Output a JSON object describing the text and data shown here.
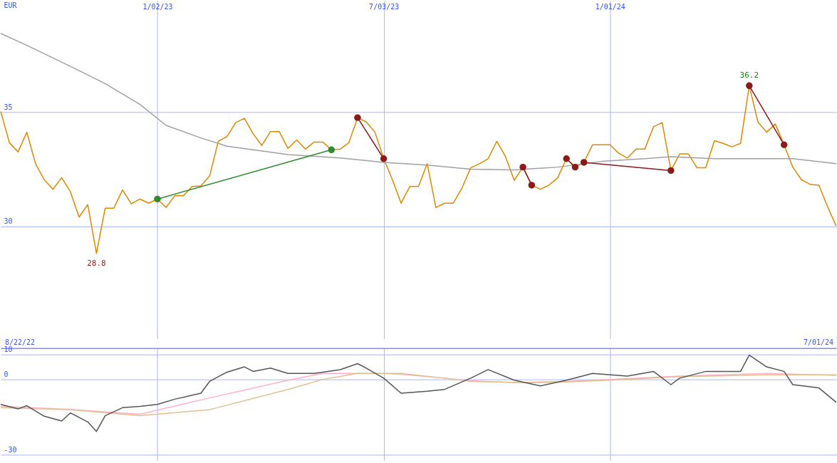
{
  "chart_data": [
    {
      "type": "line",
      "ylabel": "EUR",
      "xlim": [
        "2022-08-29",
        "2024-07-01"
      ],
      "ylim": [
        25.06,
        39.9
      ],
      "yticks": [
        30,
        35
      ],
      "xticks": [
        {
          "value": "2023-01-02",
          "label": "1/02/23"
        },
        {
          "value": "2023-07-03",
          "label": "7/03/23"
        },
        {
          "value": "2024-01-01",
          "label": "1/01/24"
        }
      ],
      "grid": true,
      "annotations": [
        {
          "text": "36.2",
          "x": "2024-04-22",
          "y": 36.16
        },
        {
          "text": "28.8",
          "x": "2022-11-14",
          "y": 28.8
        }
      ],
      "x": [
        "2022-08-29",
        "2022-09-05",
        "2022-09-12",
        "2022-09-19",
        "2022-09-26",
        "2022-10-03",
        "2022-10-10",
        "2022-10-17",
        "2022-10-24",
        "2022-10-31",
        "2022-11-07",
        "2022-11-14",
        "2022-11-21",
        "2022-11-28",
        "2022-12-05",
        "2022-12-12",
        "2022-12-19",
        "2022-12-26",
        "2023-01-02",
        "2023-01-09",
        "2023-01-16",
        "2023-01-23",
        "2023-01-30",
        "2023-02-06",
        "2023-02-13",
        "2023-02-20",
        "2023-02-27",
        "2023-03-06",
        "2023-03-13",
        "2023-03-20",
        "2023-03-27",
        "2023-04-03",
        "2023-04-10",
        "2023-04-17",
        "2023-04-24",
        "2023-05-01",
        "2023-05-08",
        "2023-05-15",
        "2023-05-22",
        "2023-05-29",
        "2023-06-05",
        "2023-06-12",
        "2023-06-19",
        "2023-06-26",
        "2023-07-03",
        "2023-07-10",
        "2023-07-17",
        "2023-07-24",
        "2023-07-31",
        "2023-08-07",
        "2023-08-14",
        "2023-08-21",
        "2023-08-28",
        "2023-09-04",
        "2023-09-11",
        "2023-09-18",
        "2023-09-25",
        "2023-10-02",
        "2023-10-09",
        "2023-10-16",
        "2023-10-23",
        "2023-10-30",
        "2023-11-06",
        "2023-11-13",
        "2023-11-20",
        "2023-11-27",
        "2023-12-04",
        "2023-12-11",
        "2023-12-18",
        "2023-12-25",
        "2024-01-01",
        "2024-01-08",
        "2024-01-15",
        "2024-01-22",
        "2024-01-29",
        "2024-02-05",
        "2024-02-12",
        "2024-02-19",
        "2024-02-26",
        "2024-03-04",
        "2024-03-11",
        "2024-03-18",
        "2024-03-25",
        "2024-04-01",
        "2024-04-08",
        "2024-04-15",
        "2024-04-22",
        "2024-04-29",
        "2024-05-06",
        "2024-05-13",
        "2024-05-20",
        "2024-05-27",
        "2024-06-03",
        "2024-06-10",
        "2024-06-17",
        "2024-06-24",
        "2024-07-01"
      ],
      "series": [
        {
          "color": "#dd8800",
          "values": [
            35.03,
            33.66,
            33.26,
            34.12,
            32.74,
            32.04,
            31.62,
            32.13,
            31.52,
            30.4,
            30.95,
            28.8,
            30.79,
            30.79,
            31.59,
            30.98,
            31.19,
            31.01,
            31.19,
            30.82,
            31.34,
            31.34,
            31.74,
            31.77,
            32.2,
            33.72,
            33.93,
            34.54,
            34.73,
            34.05,
            33.54,
            34.15,
            34.15,
            33.41,
            33.78,
            33.38,
            33.69,
            33.69,
            33.35,
            33.38,
            33.66,
            34.76,
            34.57,
            34.12,
            32.96,
            32.04,
            31.01,
            31.74,
            31.74,
            32.74,
            30.82,
            31.01,
            31.01,
            31.68,
            32.56,
            32.74,
            32.96,
            33.72,
            33.05,
            32.01,
            32.59,
            31.8,
            31.62,
            31.8,
            32.13,
            32.96,
            32.59,
            32.8,
            33.57,
            33.57,
            33.57,
            33.2,
            32.99,
            33.38,
            33.38,
            34.36,
            34.54,
            32.44,
            33.17,
            33.17,
            32.56,
            32.56,
            33.75,
            33.63,
            33.48,
            33.63,
            36.16,
            34.57,
            34.12,
            34.48,
            33.57,
            32.59,
            32.04,
            31.83,
            31.8,
            30.85,
            30.0
          ]
        },
        {
          "color": "#a0a0a0",
          "x": [
            "2022-08-29",
            "2022-09-19",
            "2022-10-24",
            "2022-11-21",
            "2022-12-19",
            "2023-01-09",
            "2023-02-06",
            "2023-02-27",
            "2023-04-17",
            "2023-05-29",
            "2023-07-03",
            "2023-08-07",
            "2023-09-11",
            "2023-10-16",
            "2023-11-20",
            "2023-12-25",
            "2024-01-29",
            "2024-02-19",
            "2024-03-25",
            "2024-04-29",
            "2024-05-27",
            "2024-07-01"
          ],
          "values": [
            38.45,
            37.93,
            37.01,
            36.25,
            35.34,
            34.42,
            33.87,
            33.51,
            33.14,
            32.99,
            32.8,
            32.68,
            32.5,
            32.47,
            32.59,
            32.84,
            32.96,
            33.05,
            32.96,
            32.96,
            32.96,
            32.74
          ]
        },
        {
          "color": "#2e8b2e",
          "marker": "circle",
          "x": [
            "2023-01-02",
            "2023-05-22"
          ],
          "values": [
            31.19,
            33.35
          ]
        },
        {
          "color": "#8b1a1a",
          "marker": "circle",
          "x": [
            "2023-06-12",
            "2023-07-03"
          ],
          "values": [
            34.76,
            32.96
          ]
        },
        {
          "color": "#8b1a1a",
          "marker": "circle",
          "x": [
            "2023-10-23",
            "2023-10-30"
          ],
          "values": [
            32.59,
            31.8
          ]
        },
        {
          "color": "#8b1a1a",
          "marker": "circle",
          "x": [
            "2023-11-27",
            "2023-12-04"
          ],
          "values": [
            32.96,
            32.59
          ]
        },
        {
          "color": "#8b1a1a",
          "marker": "circle",
          "x": [
            "2023-12-11",
            "2024-02-19"
          ],
          "values": [
            32.8,
            32.44
          ]
        },
        {
          "color": "#8b1a1a",
          "marker": "circle",
          "x": [
            "2024-04-22",
            "2024-05-20"
          ],
          "values": [
            36.16,
            33.57
          ]
        }
      ]
    },
    {
      "type": "line",
      "xlim": [
        "2022-08-29",
        "2024-07-01"
      ],
      "ylim": [
        -32.4,
        12.5
      ],
      "yticks": [
        10,
        0,
        -30
      ],
      "xticks": [
        {
          "value": "2023-01-02",
          "label": null
        },
        {
          "value": "2023-07-03",
          "label": null
        },
        {
          "value": "2024-01-01",
          "label": null
        }
      ],
      "tick_labels": "y",
      "grid": true,
      "annotations": [
        "8/22/22",
        "7/01/24"
      ],
      "series": [
        {
          "color": "#ffb0c8",
          "x": [
            "2022-08-29",
            "2022-10-24",
            "2022-12-19",
            "2023-02-13",
            "2023-04-17",
            "2023-05-15",
            "2023-06-12",
            "2023-07-03",
            "2023-07-17",
            "2023-08-21",
            "2023-09-11",
            "2023-10-16",
            "2023-11-06",
            "2023-11-27",
            "2024-01-01",
            "2024-02-26",
            "2024-05-06",
            "2024-07-01"
          ],
          "values": [
            -10.8,
            -12.0,
            -13.9,
            -7.4,
            -0.3,
            2.4,
            2.4,
            2.4,
            2.0,
            0.5,
            -0.5,
            -1.3,
            -1.0,
            -0.8,
            0,
            1.3,
            2.4,
            1.6
          ]
        },
        {
          "color": "#e0c090",
          "x": [
            "2022-08-29",
            "2022-10-24",
            "2022-12-19",
            "2023-02-13",
            "2023-04-17",
            "2023-05-15",
            "2023-06-12",
            "2023-07-03",
            "2023-07-17",
            "2023-08-21",
            "2023-09-11",
            "2023-10-16",
            "2023-11-06",
            "2023-11-27",
            "2024-01-01",
            "2024-02-26",
            "2024-05-06",
            "2024-07-01"
          ],
          "values": [
            -11.3,
            -12.1,
            -14.5,
            -12.1,
            -4.0,
            0.0,
            2.4,
            2.4,
            2.4,
            0.5,
            -0.8,
            -1.2,
            -1.3,
            -1.0,
            -0.3,
            1.1,
            1.8,
            1.8
          ]
        },
        {
          "color": "#555555",
          "x": [
            "2022-08-29",
            "2022-09-12",
            "2022-09-19",
            "2022-10-03",
            "2022-10-17",
            "2022-10-24",
            "2022-11-07",
            "2022-11-14",
            "2022-11-21",
            "2022-12-05",
            "2022-12-19",
            "2023-01-02",
            "2023-01-16",
            "2023-02-06",
            "2023-02-13",
            "2023-02-27",
            "2023-03-13",
            "2023-03-20",
            "2023-04-03",
            "2023-04-17",
            "2023-05-08",
            "2023-05-29",
            "2023-06-12",
            "2023-06-19",
            "2023-07-03",
            "2023-07-17",
            "2023-08-07",
            "2023-08-21",
            "2023-09-11",
            "2023-09-25",
            "2023-10-16",
            "2023-11-06",
            "2023-11-27",
            "2023-12-18",
            "2024-01-15",
            "2024-02-05",
            "2024-02-19",
            "2024-02-26",
            "2024-03-18",
            "2024-04-15",
            "2024-04-22",
            "2024-05-06",
            "2024-05-20",
            "2024-05-27",
            "2024-06-17",
            "2024-07-01"
          ],
          "values": [
            -10.0,
            -11.8,
            -10.5,
            -14.7,
            -16.6,
            -13.4,
            -17.0,
            -20.8,
            -14.5,
            -11.3,
            -10.8,
            -10.0,
            -7.9,
            -5.5,
            -0.8,
            2.9,
            5.0,
            3.2,
            4.5,
            2.4,
            2.4,
            3.9,
            6.3,
            4.5,
            0.5,
            -5.5,
            -4.7,
            -4.0,
            0.5,
            3.9,
            -0.3,
            -2.6,
            -0.3,
            2.4,
            1.3,
            3.2,
            -2.1,
            0.5,
            3.2,
            3.2,
            9.7,
            5.0,
            3.2,
            -2.1,
            -3.4,
            -9.2
          ]
        }
      ]
    }
  ]
}
